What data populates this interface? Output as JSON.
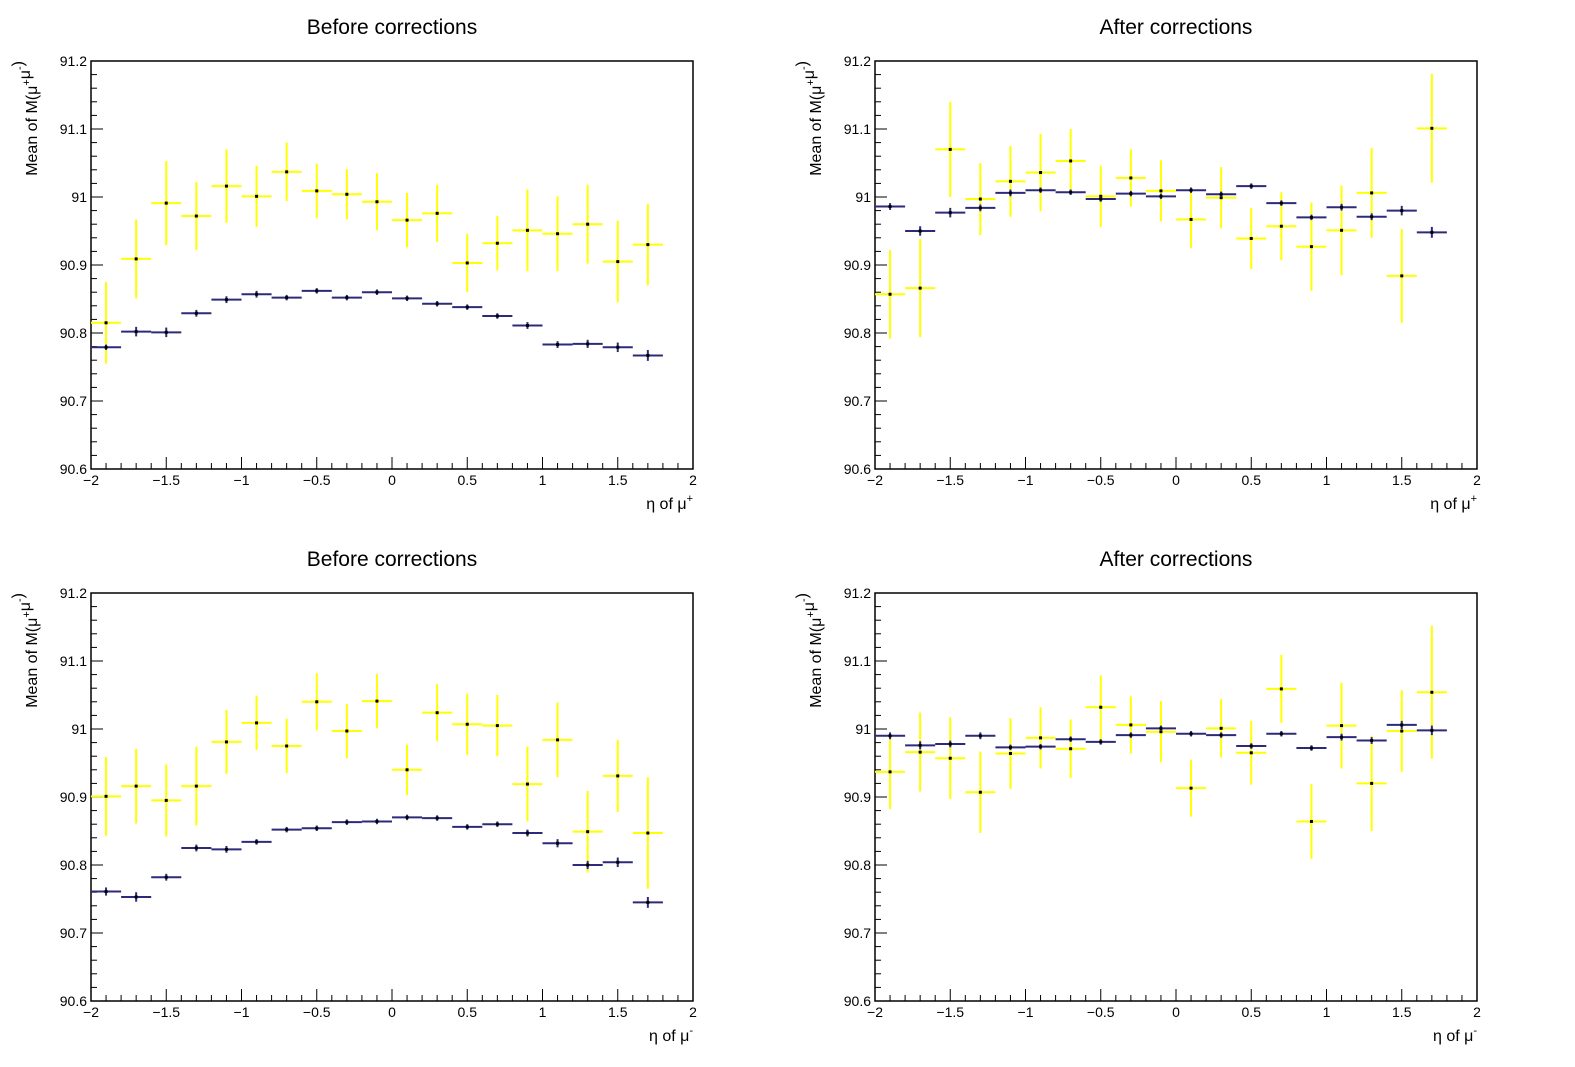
{
  "chart_data": [
    {
      "type": "scatter",
      "title": "Before corrections",
      "xlabel": "η of μ+",
      "ylabel": "Mean of M(μ+μ-)",
      "xlim": [
        -2,
        2
      ],
      "ylim": [
        90.6,
        91.2
      ],
      "xticks": [
        "−2",
        "−1.5",
        "−1",
        "−0.5",
        "0",
        "0.5",
        "1",
        "1.5",
        "2"
      ],
      "yticks": [
        "90.6",
        "90.7",
        "90.8",
        "90.9",
        "91",
        "91.1",
        "91.2"
      ],
      "grid": false,
      "series": [
        {
          "color": "#ffff00",
          "x": [
            -1.9,
            -1.7,
            -1.5,
            -1.3,
            -1.1,
            -0.9,
            -0.7,
            -0.5,
            -0.3,
            -0.1,
            0.1,
            0.3,
            0.5,
            0.7,
            0.9,
            1.1,
            1.3,
            1.5,
            1.7
          ],
          "y": [
            90.815,
            90.909,
            90.991,
            90.972,
            91.016,
            91.001,
            91.037,
            91.009,
            91.004,
            90.993,
            90.966,
            90.976,
            90.903,
            90.932,
            90.951,
            90.946,
            90.96,
            90.905,
            90.93
          ],
          "yerr": [
            0.06,
            0.058,
            0.062,
            0.05,
            0.054,
            0.045,
            0.043,
            0.04,
            0.037,
            0.042,
            0.04,
            0.042,
            0.043,
            0.04,
            0.06,
            0.055,
            0.058,
            0.06,
            0.06
          ]
        },
        {
          "color": "#2d2a7a",
          "x": [
            -1.9,
            -1.7,
            -1.5,
            -1.3,
            -1.1,
            -0.9,
            -0.7,
            -0.5,
            -0.3,
            -0.1,
            0.1,
            0.3,
            0.5,
            0.7,
            0.9,
            1.1,
            1.3,
            1.5,
            1.7
          ],
          "y": [
            90.779,
            90.802,
            90.801,
            90.829,
            90.849,
            90.857,
            90.852,
            90.862,
            90.852,
            90.86,
            90.851,
            90.843,
            90.838,
            90.825,
            90.811,
            90.783,
            90.784,
            90.779,
            90.767
          ],
          "yerr": [
            0.004,
            0.007,
            0.007,
            0.005,
            0.005,
            0.005,
            0.004,
            0.004,
            0.004,
            0.004,
            0.004,
            0.004,
            0.004,
            0.004,
            0.005,
            0.005,
            0.006,
            0.007,
            0.008
          ]
        }
      ]
    },
    {
      "type": "scatter",
      "title": "After corrections",
      "xlabel": "η of μ+",
      "ylabel": "Mean of M(μ+μ-)",
      "xlim": [
        -2,
        2
      ],
      "ylim": [
        90.6,
        91.2
      ],
      "xticks": [
        "−2",
        "−1.5",
        "−1",
        "−0.5",
        "0",
        "0.5",
        "1",
        "1.5",
        "2"
      ],
      "yticks": [
        "90.6",
        "90.7",
        "90.8",
        "90.9",
        "91",
        "91.1",
        "91.2"
      ],
      "grid": false,
      "series": [
        {
          "color": "#ffff00",
          "x": [
            -1.9,
            -1.7,
            -1.5,
            -1.3,
            -1.1,
            -0.9,
            -0.7,
            -0.5,
            -0.3,
            -0.1,
            0.1,
            0.3,
            0.5,
            0.7,
            0.9,
            1.1,
            1.3,
            1.5,
            1.7
          ],
          "y": [
            90.857,
            90.866,
            91.07,
            90.997,
            91.023,
            91.036,
            91.053,
            91.001,
            91.028,
            91.009,
            90.967,
            90.999,
            90.939,
            90.957,
            90.927,
            90.951,
            91.006,
            90.884,
            91.101
          ],
          "yerr": [
            0.065,
            0.072,
            0.07,
            0.053,
            0.052,
            0.057,
            0.047,
            0.045,
            0.042,
            0.045,
            0.042,
            0.045,
            0.045,
            0.05,
            0.065,
            0.066,
            0.066,
            0.069,
            0.08
          ]
        },
        {
          "color": "#2d2a7a",
          "x": [
            -1.9,
            -1.7,
            -1.5,
            -1.3,
            -1.1,
            -0.9,
            -0.7,
            -0.5,
            -0.3,
            -0.1,
            0.1,
            0.3,
            0.5,
            0.7,
            0.9,
            1.1,
            1.3,
            1.5,
            1.7
          ],
          "y": [
            90.986,
            90.95,
            90.977,
            90.984,
            91.006,
            91.01,
            91.007,
            90.997,
            91.005,
            91.001,
            91.01,
            91.004,
            91.016,
            90.991,
            90.97,
            90.985,
            90.971,
            90.98,
            90.948
          ],
          "yerr": [
            0.005,
            0.007,
            0.007,
            0.005,
            0.005,
            0.004,
            0.004,
            0.004,
            0.004,
            0.004,
            0.004,
            0.004,
            0.004,
            0.004,
            0.004,
            0.005,
            0.005,
            0.007,
            0.008
          ]
        }
      ]
    },
    {
      "type": "scatter",
      "title": "Before corrections",
      "xlabel": "η of μ-",
      "ylabel": "Mean of M(μ+μ-)",
      "xlim": [
        -2,
        2
      ],
      "ylim": [
        90.6,
        91.2
      ],
      "xticks": [
        "−2",
        "−1.5",
        "−1",
        "−0.5",
        "0",
        "0.5",
        "1",
        "1.5",
        "2"
      ],
      "yticks": [
        "90.6",
        "90.7",
        "90.8",
        "90.9",
        "91",
        "91.1",
        "91.2"
      ],
      "grid": false,
      "series": [
        {
          "color": "#ffff00",
          "x": [
            -1.9,
            -1.7,
            -1.5,
            -1.3,
            -1.1,
            -0.9,
            -0.7,
            -0.5,
            -0.3,
            -0.1,
            0.1,
            0.3,
            0.5,
            0.7,
            0.9,
            1.1,
            1.3,
            1.5,
            1.7
          ],
          "y": [
            90.901,
            90.916,
            90.895,
            90.916,
            90.981,
            91.009,
            90.975,
            91.04,
            90.997,
            91.041,
            90.94,
            91.024,
            91.007,
            91.005,
            90.919,
            90.984,
            90.849,
            90.931,
            90.847
          ],
          "yerr": [
            0.058,
            0.055,
            0.053,
            0.058,
            0.047,
            0.04,
            0.04,
            0.042,
            0.04,
            0.04,
            0.037,
            0.042,
            0.045,
            0.045,
            0.055,
            0.055,
            0.06,
            0.053,
            0.082
          ]
        },
        {
          "color": "#2d2a7a",
          "x": [
            -1.9,
            -1.7,
            -1.5,
            -1.3,
            -1.1,
            -0.9,
            -0.7,
            -0.5,
            -0.3,
            -0.1,
            0.1,
            0.3,
            0.5,
            0.7,
            0.9,
            1.1,
            1.3,
            1.5,
            1.7
          ],
          "y": [
            90.761,
            90.753,
            90.782,
            90.825,
            90.823,
            90.834,
            90.852,
            90.854,
            90.863,
            90.864,
            90.87,
            90.869,
            90.856,
            90.86,
            90.847,
            90.832,
            90.8,
            90.804,
            90.745
          ],
          "yerr": [
            0.006,
            0.007,
            0.005,
            0.005,
            0.005,
            0.004,
            0.004,
            0.004,
            0.004,
            0.004,
            0.004,
            0.004,
            0.004,
            0.004,
            0.005,
            0.006,
            0.006,
            0.007,
            0.008
          ]
        }
      ]
    },
    {
      "type": "scatter",
      "title": "After corrections",
      "xlabel": "η of μ-",
      "ylabel": "Mean of M(μ+μ-)",
      "xlim": [
        -2,
        2
      ],
      "ylim": [
        90.6,
        91.2
      ],
      "xticks": [
        "−2",
        "−1.5",
        "−1",
        "−0.5",
        "0",
        "0.5",
        "1",
        "1.5",
        "2"
      ],
      "yticks": [
        "90.6",
        "90.7",
        "90.8",
        "90.9",
        "91",
        "91.1",
        "91.2"
      ],
      "grid": false,
      "series": [
        {
          "color": "#ffff00",
          "x": [
            -1.9,
            -1.7,
            -1.5,
            -1.3,
            -1.1,
            -0.9,
            -0.7,
            -0.5,
            -0.3,
            -0.1,
            0.1,
            0.3,
            0.5,
            0.7,
            0.9,
            1.1,
            1.3,
            1.5,
            1.7
          ],
          "y": [
            90.937,
            90.966,
            90.957,
            90.907,
            90.964,
            90.987,
            90.971,
            91.032,
            91.006,
            90.996,
            90.913,
            91.001,
            90.965,
            91.059,
            90.864,
            91.005,
            90.92,
            90.997,
            91.054
          ],
          "yerr": [
            0.055,
            0.058,
            0.06,
            0.06,
            0.052,
            0.045,
            0.043,
            0.047,
            0.042,
            0.045,
            0.042,
            0.043,
            0.047,
            0.05,
            0.055,
            0.063,
            0.07,
            0.06,
            0.098
          ]
        },
        {
          "color": "#2d2a7a",
          "x": [
            -1.9,
            -1.7,
            -1.5,
            -1.3,
            -1.1,
            -0.9,
            -0.7,
            -0.5,
            -0.3,
            -0.1,
            0.1,
            0.3,
            0.5,
            0.7,
            0.9,
            1.1,
            1.3,
            1.5,
            1.7
          ],
          "y": [
            90.99,
            90.976,
            90.978,
            90.99,
            90.973,
            90.974,
            90.985,
            90.981,
            90.991,
            91.001,
            90.993,
            90.991,
            90.975,
            90.993,
            90.972,
            90.988,
            90.983,
            91.006,
            90.998
          ],
          "yerr": [
            0.005,
            0.006,
            0.005,
            0.005,
            0.004,
            0.004,
            0.004,
            0.004,
            0.004,
            0.004,
            0.004,
            0.004,
            0.004,
            0.004,
            0.004,
            0.005,
            0.005,
            0.006,
            0.007
          ]
        }
      ]
    }
  ]
}
